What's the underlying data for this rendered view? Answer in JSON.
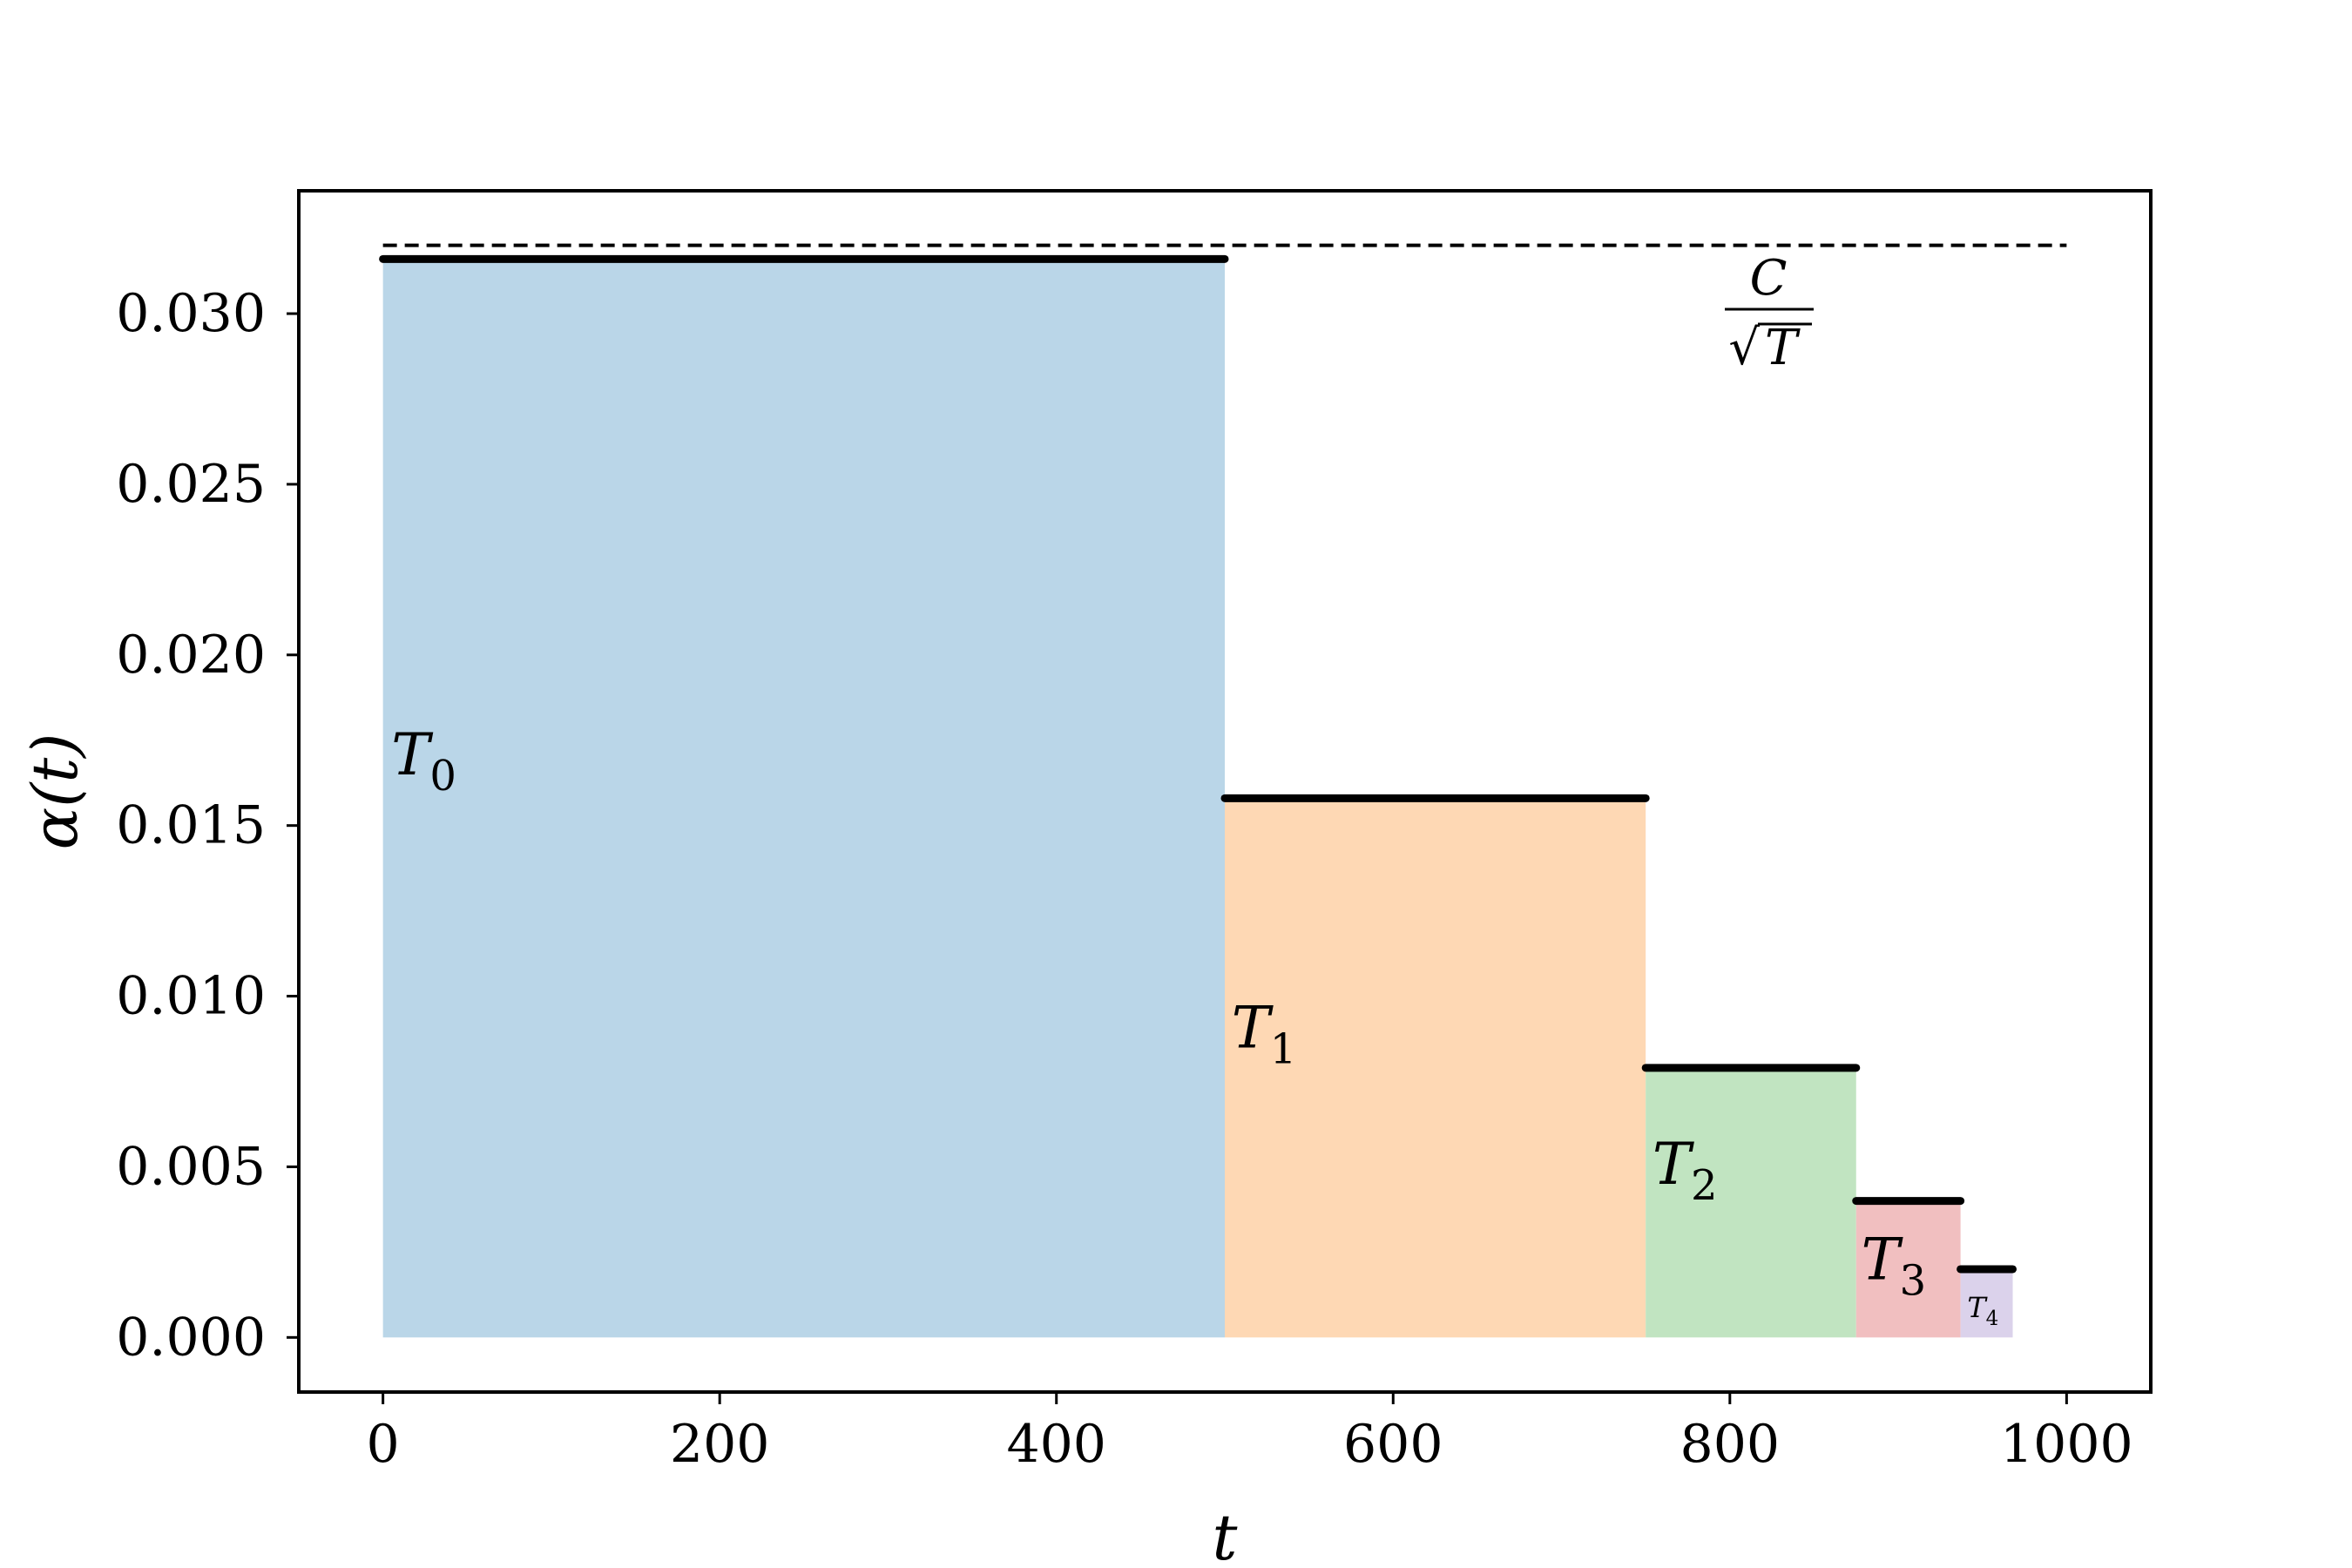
{
  "chart_data": {
    "type": "bar",
    "title": "",
    "xlabel": "t",
    "ylabel": "α(t)",
    "xlim": [
      -50,
      1050
    ],
    "ylim": [
      -0.0016,
      0.0336
    ],
    "xticks": [
      0,
      200,
      400,
      600,
      800,
      1000
    ],
    "xtick_labels": [
      "0",
      "200",
      "400",
      "600",
      "800",
      "1000"
    ],
    "yticks": [
      0.0,
      0.005,
      0.01,
      0.015,
      0.02,
      0.025,
      0.03
    ],
    "ytick_labels": [
      "0.000",
      "0.005",
      "0.010",
      "0.015",
      "0.020",
      "0.025",
      "0.030"
    ],
    "grid": false,
    "segments": [
      {
        "label": "T",
        "sub": "0",
        "x_start": 0,
        "x_end": 500,
        "value": 0.0316,
        "color": "#bad6e8",
        "label_x": 5,
        "label_y": 0.0165
      },
      {
        "label": "T",
        "sub": "1",
        "x_start": 500,
        "x_end": 750,
        "value": 0.0158,
        "color": "#fed8b4",
        "label_x": 504,
        "label_y": 0.0085
      },
      {
        "label": "T",
        "sub": "2",
        "x_start": 750,
        "x_end": 875,
        "value": 0.0079,
        "color": "#c1e4c1",
        "label_x": 754,
        "label_y": 0.0045
      },
      {
        "label": "T",
        "sub": "3",
        "x_start": 875,
        "x_end": 937,
        "value": 0.004,
        "color": "#f1bfc0",
        "label_x": 878,
        "label_y": 0.0017
      },
      {
        "label": "T",
        "sub": "4",
        "x_start": 937,
        "x_end": 968,
        "value": 0.002,
        "color": "#dbd2eb",
        "label_x": 941,
        "label_y": 0.0006
      }
    ],
    "reference_line": {
      "value": 0.032,
      "x_start": 0,
      "x_end": 1000,
      "style": "dashed",
      "label_numerator": "C",
      "label_denominator": "T"
    }
  }
}
